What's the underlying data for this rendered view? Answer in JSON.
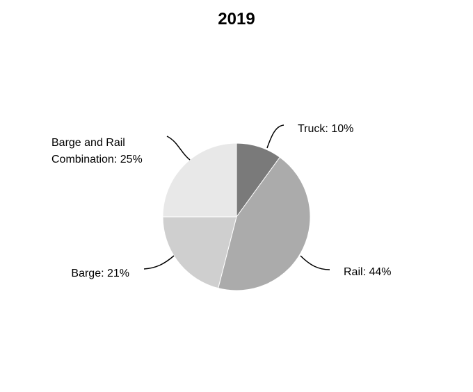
{
  "chart_data": {
    "type": "pie",
    "title": "2019",
    "slices": [
      {
        "label": "Truck: 10%",
        "category": "Truck",
        "value": 10,
        "color": "#7a7a7a"
      },
      {
        "label": "Rail: 44%",
        "category": "Rail",
        "value": 44,
        "color": "#ababab"
      },
      {
        "label": "Barge: 21%",
        "category": "Barge",
        "value": 21,
        "color": "#cfcfcf"
      },
      {
        "label": "Barge and Rail Combination: 25%",
        "label_lines": [
          "Barge and Rail",
          "Combination: 25%"
        ],
        "category": "Barge and Rail Combination",
        "value": 25,
        "color": "#e8e8e8"
      }
    ],
    "legend": "none",
    "start_angle_deg": 0,
    "direction": "clockwise"
  }
}
